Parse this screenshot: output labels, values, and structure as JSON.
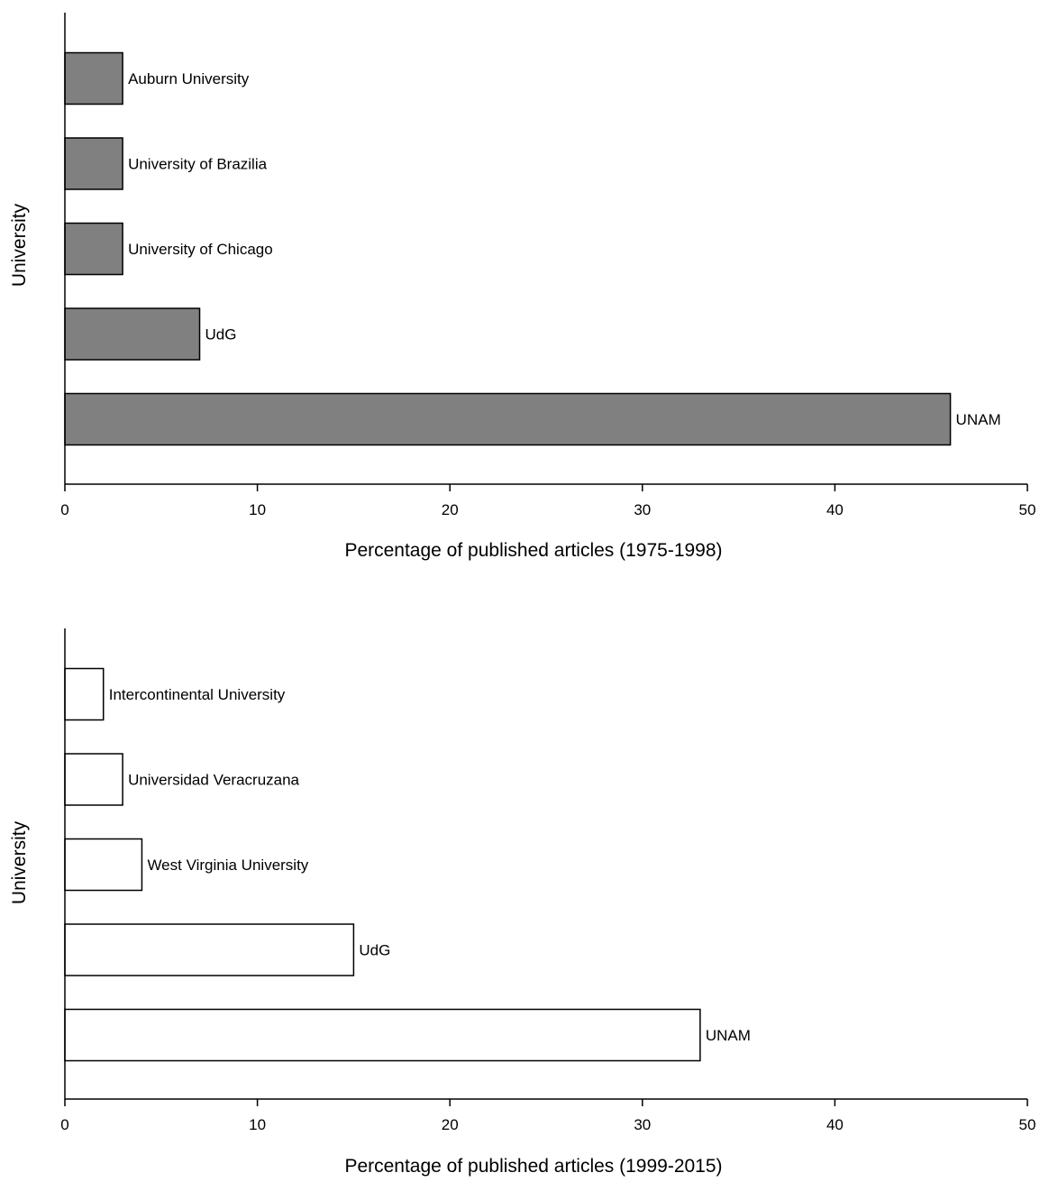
{
  "chart_data": [
    {
      "type": "bar",
      "orientation": "horizontal",
      "categories": [
        "UNAM",
        "UdG",
        "University of Chicago",
        "University of Brazilia",
        "Auburn University"
      ],
      "values": [
        46,
        7,
        3,
        3,
        3
      ],
      "xlabel": "Percentage of published articles (1975-1998)",
      "ylabel": "University",
      "xlim": [
        0,
        50
      ],
      "xticks": [
        0,
        10,
        20,
        30,
        40,
        50
      ],
      "bar_color": "#808080",
      "grid": false,
      "legend": "none"
    },
    {
      "type": "bar",
      "orientation": "horizontal",
      "categories": [
        "UNAM",
        "UdG",
        "West Virginia University",
        "Universidad Veracruzana",
        "Intercontinental University"
      ],
      "values": [
        33,
        15,
        4,
        3,
        2
      ],
      "xlabel": "Percentage of published articles (1999-2015)",
      "ylabel": "University",
      "xlim": [
        0,
        50
      ],
      "xticks": [
        0,
        10,
        20,
        30,
        40,
        50
      ],
      "bar_color": "#ffffff",
      "grid": false,
      "legend": "none"
    }
  ]
}
